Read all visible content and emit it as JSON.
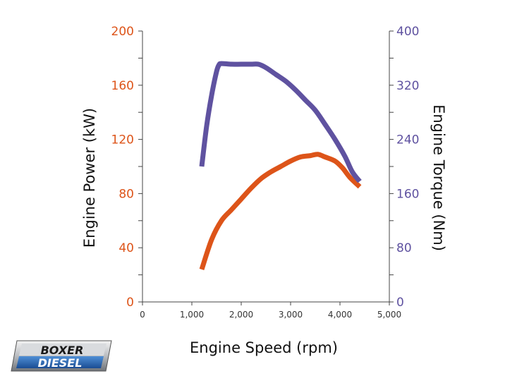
{
  "colors": {
    "power": "#dd5419",
    "torque": "#5f52a0",
    "axis": "#444444"
  },
  "chart_data": {
    "type": "line",
    "xlabel": "Engine Speed (rpm)",
    "ylabel_left": "Engine Power (kW)",
    "ylabel_right": "Engine Torque (Nm)",
    "xlim": [
      0,
      5000
    ],
    "ylim_left": [
      0,
      200
    ],
    "ylim_right": [
      0,
      400
    ],
    "grid": false,
    "x_ticks": [
      0,
      1000,
      2000,
      3000,
      4000,
      5000
    ],
    "x_tick_labels": [
      "0",
      "1,000",
      "2,000",
      "3,000",
      "4,000",
      "5,000"
    ],
    "left_ticks": [
      0,
      40,
      80,
      120,
      160,
      200
    ],
    "left_tick_labels": [
      "0",
      "40",
      "80",
      "120",
      "160",
      "200"
    ],
    "right_ticks": [
      0,
      80,
      160,
      240,
      320,
      400
    ],
    "right_tick_labels": [
      "0",
      "80",
      "160",
      "240",
      "320",
      "400"
    ],
    "series": [
      {
        "key": "power",
        "axis": "left",
        "x": [
          1200,
          1400,
          1600,
          1800,
          2000,
          2200,
          2400,
          2600,
          2800,
          3000,
          3200,
          3400,
          3550,
          3700,
          3900,
          4050,
          4200,
          4400
        ],
        "values": [
          24,
          46,
          60,
          68,
          76,
          84,
          91,
          96,
          100,
          104,
          107,
          108,
          109,
          107,
          104,
          99,
          92,
          85
        ]
      },
      {
        "key": "torque",
        "axis": "right",
        "x": [
          1200,
          1300,
          1400,
          1500,
          1550,
          1600,
          1800,
          2000,
          2200,
          2350,
          2500,
          2700,
          2900,
          3100,
          3300,
          3500,
          3700,
          3900,
          4100,
          4250,
          4400
        ],
        "values": [
          200,
          260,
          305,
          340,
          350,
          352,
          351,
          351,
          351,
          351,
          346,
          336,
          326,
          313,
          298,
          283,
          262,
          240,
          215,
          192,
          178
        ]
      }
    ],
    "annotations": [
      "BOXER",
      "DIESEL"
    ]
  }
}
